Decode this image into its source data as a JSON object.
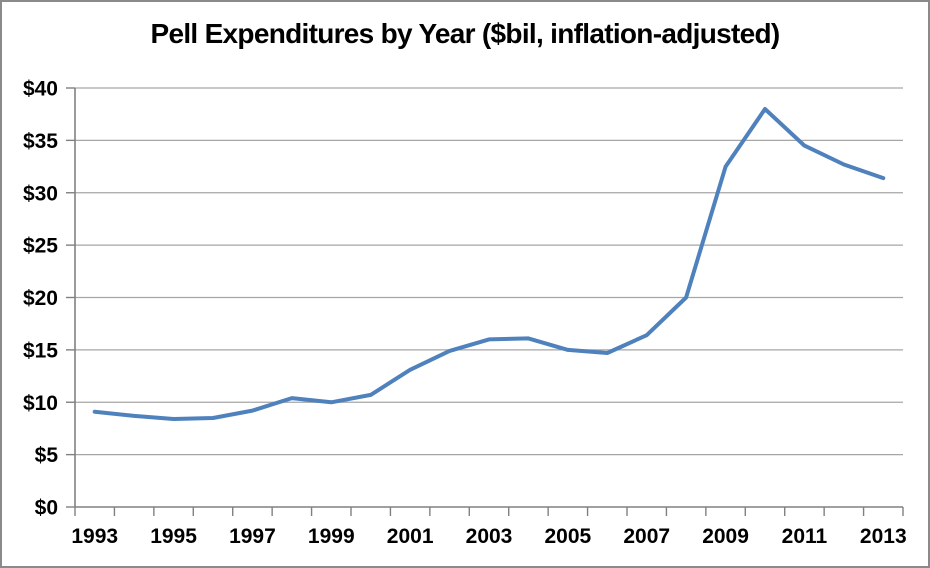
{
  "window": {
    "background_color": "#FFFFFF",
    "border_color": "#8A8A8A"
  },
  "chart_data": {
    "type": "line",
    "title": "Pell Expenditures by Year ($bil, inflation-adjusted)",
    "x": [
      1993,
      1994,
      1995,
      1996,
      1997,
      1998,
      1999,
      2000,
      2001,
      2002,
      2003,
      2004,
      2005,
      2006,
      2007,
      2008,
      2009,
      2010,
      2011,
      2012,
      2013
    ],
    "series": [
      {
        "values": [
          9.1,
          8.7,
          8.4,
          8.5,
          9.2,
          10.4,
          10.0,
          10.7,
          13.1,
          14.9,
          16.0,
          16.1,
          15.0,
          14.7,
          16.4,
          20.0,
          32.5,
          38.0,
          34.5,
          32.7,
          31.4
        ]
      }
    ],
    "xlabel": "",
    "ylabel": "",
    "ylim": [
      0,
      40
    ],
    "y_tick_values": [
      0,
      5,
      10,
      15,
      20,
      25,
      30,
      35,
      40
    ],
    "y_tick_labels": [
      "$0",
      "$5",
      "$10",
      "$15",
      "$20",
      "$25",
      "$30",
      "$35",
      "$40"
    ],
    "x_tick_labels": [
      "1993",
      "1995",
      "1997",
      "1999",
      "2001",
      "2003",
      "2005",
      "2007",
      "2009",
      "2011",
      "2013"
    ],
    "grid": "horizontal",
    "legend": "none",
    "line_color": "#4F81BD",
    "gridline_color": "#A6A6A6",
    "axis_color": "#808080"
  }
}
